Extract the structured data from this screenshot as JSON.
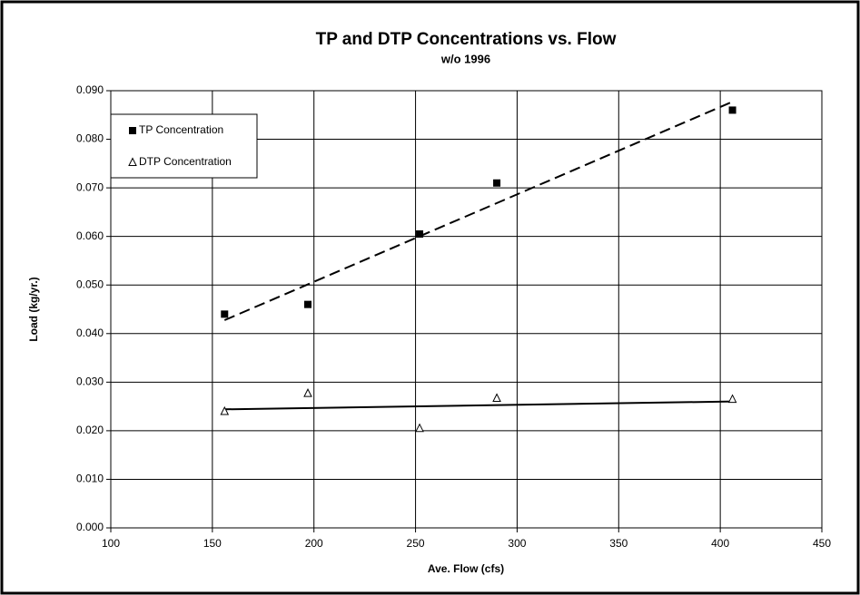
{
  "chart_data": {
    "type": "scatter",
    "title": "TP and DTP Concentrations vs. Flow",
    "subtitle": "w/o 1996",
    "x_label": "Ave. Flow (cfs)",
    "y_label": "Load (kg/yr.)",
    "series": [
      {
        "name": "TP Concentration",
        "color": "#000000",
        "marker": "square",
        "trendline": "dashed",
        "x": [
          156,
          197,
          252,
          290,
          406
        ],
        "values": [
          0.044,
          0.046,
          0.0605,
          0.071,
          0.086
        ]
      },
      {
        "name": "DTP Concentration",
        "color": "#000000",
        "marker": "triangle",
        "trendline": "solid",
        "x": [
          156,
          197,
          252,
          290,
          406
        ],
        "values": [
          0.024,
          0.0277,
          0.0205,
          0.0267,
          0.0265
        ]
      }
    ],
    "xlim": [
      100,
      450
    ],
    "xticks": [
      100,
      150,
      200,
      250,
      300,
      350,
      400,
      450
    ],
    "ylim": [
      0,
      0.09
    ],
    "yticks": [
      {
        "value": 0,
        "label": "0.000"
      },
      {
        "value": 0.01,
        "label": "0.010"
      },
      {
        "value": 0.02,
        "label": "0.020"
      },
      {
        "value": 0.03,
        "label": "0.030"
      },
      {
        "value": 0.04,
        "label": "0.040"
      },
      {
        "value": 0.05,
        "label": "0.050"
      },
      {
        "value": 0.06,
        "label": "0.060"
      },
      {
        "value": 0.07,
        "label": "0.070"
      },
      {
        "value": 0.08,
        "label": "0.080"
      },
      {
        "value": 0.09,
        "label": "0.090"
      }
    ],
    "grid": true,
    "legend": "upper left"
  }
}
